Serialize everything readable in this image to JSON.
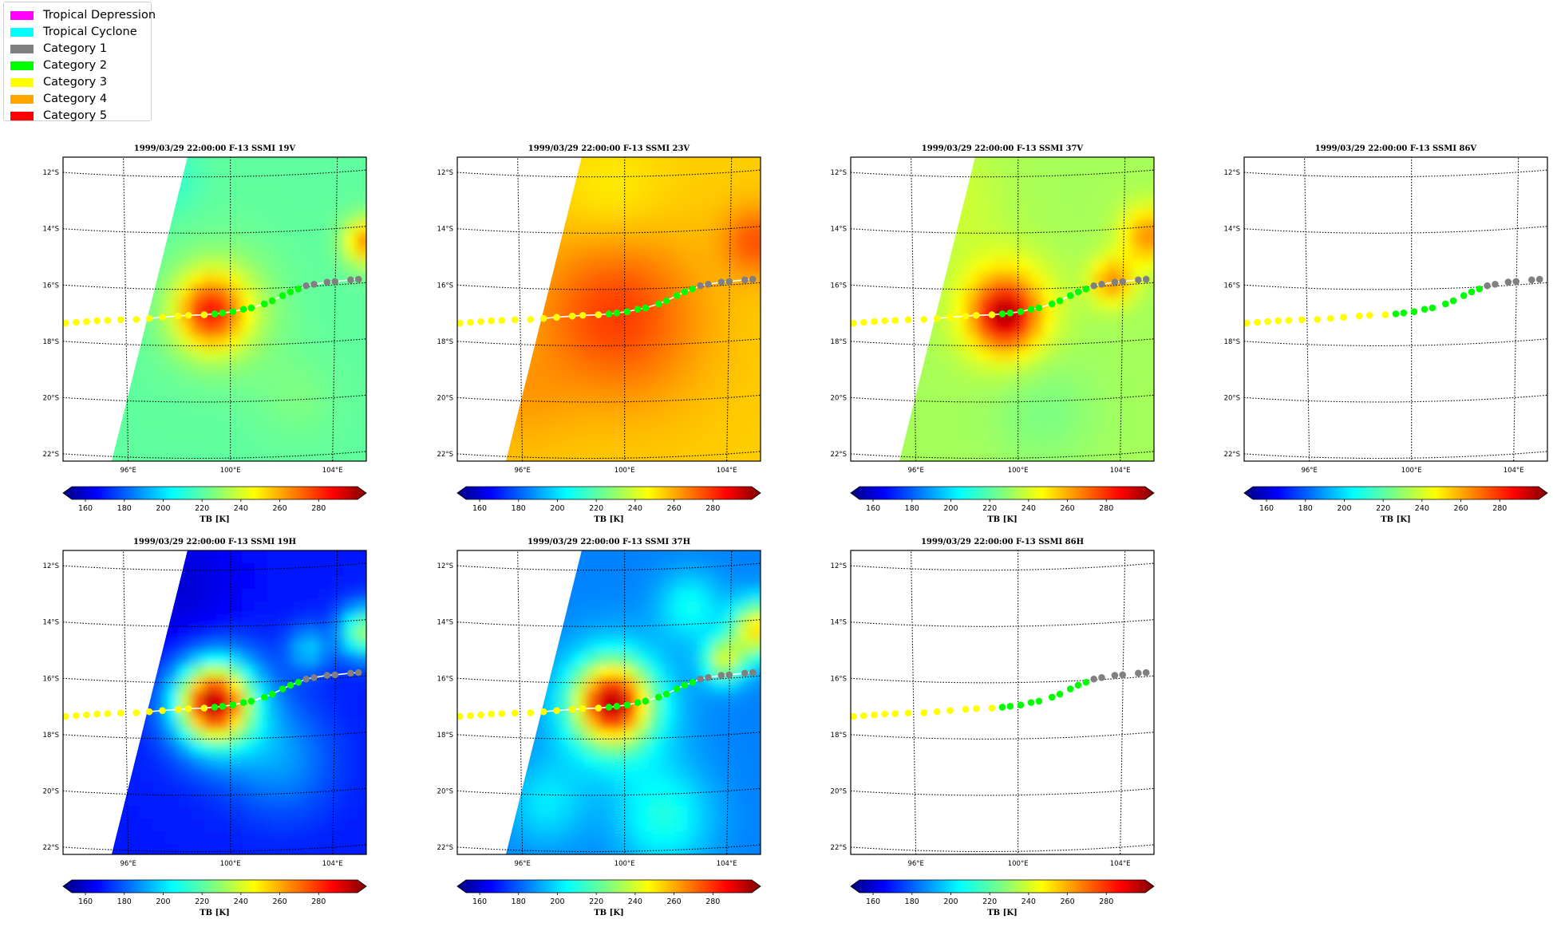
{
  "legend": {
    "items": [
      {
        "label": "Tropical Depression",
        "color": "#ff00ff"
      },
      {
        "label": "Tropical Cyclone",
        "color": "#00ffff"
      },
      {
        "label": "Category 1",
        "color": "#808080"
      },
      {
        "label": "Category 2",
        "color": "#00ff00"
      },
      {
        "label": "Category 3",
        "color": "#ffff00"
      },
      {
        "label": "Category 4",
        "color": "#ffa500"
      },
      {
        "label": "Category 5",
        "color": "#ff0000"
      }
    ]
  },
  "map": {
    "lon_ticks": [
      "96°E",
      "100°E",
      "104°E"
    ],
    "lat_ticks": [
      "12°S",
      "14°S",
      "16°S",
      "18°S",
      "20°S",
      "22°S"
    ],
    "lon_values": [
      96,
      100,
      104
    ],
    "lat_values": [
      -12,
      -14,
      -16,
      -18,
      -20,
      -22
    ],
    "lon_range": [
      93.6,
      105.2
    ],
    "lat_range": [
      -22.3,
      -11.5
    ]
  },
  "colorbar": {
    "ticks": [
      "160",
      "180",
      "200",
      "220",
      "240",
      "260",
      "280"
    ],
    "tick_values": [
      160,
      180,
      200,
      220,
      240,
      260,
      280
    ],
    "range": [
      153,
      300
    ],
    "label": "TB [K]",
    "colormap": "jet",
    "extend": "both"
  },
  "panels": [
    {
      "title": "1999/03/29 22:00:00  F-13 SSMI 19V",
      "field": "19V",
      "swath": true,
      "row": 0,
      "col": 0
    },
    {
      "title": "1999/03/29 22:00:00  F-13 SSMI 23V",
      "field": "23V",
      "swath": true,
      "row": 0,
      "col": 1
    },
    {
      "title": "1999/03/29 22:00:00  F-13 SSMI 37V",
      "field": "37V",
      "swath": true,
      "row": 0,
      "col": 2
    },
    {
      "title": "1999/03/29 22:00:00  F-13 SSMI 86V",
      "field": "86V",
      "swath": false,
      "row": 0,
      "col": 3
    },
    {
      "title": "1999/03/29 22:00:00  F-13 SSMI 19H",
      "field": "19H",
      "swath": true,
      "row": 1,
      "col": 0
    },
    {
      "title": "1999/03/29 22:00:00  F-13 SSMI 37H",
      "field": "37H",
      "swath": true,
      "row": 1,
      "col": 1
    },
    {
      "title": "1999/03/29 22:00:00  F-13 SSMI 86H",
      "field": "86H",
      "swath": false,
      "row": 1,
      "col": 2
    }
  ],
  "track": {
    "points": [
      {
        "lon": 93.7,
        "lat": -17.35,
        "cat": "Category 3"
      },
      {
        "lon": 94.1,
        "lat": -17.3,
        "cat": "Category 3"
      },
      {
        "lon": 94.5,
        "lat": -17.25,
        "cat": "Category 3"
      },
      {
        "lon": 94.9,
        "lat": -17.2,
        "cat": "Category 3"
      },
      {
        "lon": 95.3,
        "lat": -17.17,
        "cat": "Category 3"
      },
      {
        "lon": 95.8,
        "lat": -17.13,
        "cat": "Category 3"
      },
      {
        "lon": 96.4,
        "lat": -17.1,
        "cat": "Category 3"
      },
      {
        "lon": 96.9,
        "lat": -17.05,
        "cat": "Category 3"
      },
      {
        "lon": 97.4,
        "lat": -17.0,
        "cat": "Category 3"
      },
      {
        "lon": 98.0,
        "lat": -16.95,
        "cat": "Category 3"
      },
      {
        "lon": 98.4,
        "lat": -16.92,
        "cat": "Category 3"
      },
      {
        "lon": 99.0,
        "lat": -16.9,
        "cat": "Category 3"
      },
      {
        "lon": 99.4,
        "lat": -16.87,
        "cat": "Category 2"
      },
      {
        "lon": 99.7,
        "lat": -16.84,
        "cat": "Category 2"
      },
      {
        "lon": 100.1,
        "lat": -16.8,
        "cat": "Category 2"
      },
      {
        "lon": 100.5,
        "lat": -16.72,
        "cat": "Category 2"
      },
      {
        "lon": 100.8,
        "lat": -16.68,
        "cat": "Category 2"
      },
      {
        "lon": 101.3,
        "lat": -16.55,
        "cat": "Category 2"
      },
      {
        "lon": 101.6,
        "lat": -16.45,
        "cat": "Category 2"
      },
      {
        "lon": 102.0,
        "lat": -16.28,
        "cat": "Category 2"
      },
      {
        "lon": 102.3,
        "lat": -16.16,
        "cat": "Category 2"
      },
      {
        "lon": 102.6,
        "lat": -16.07,
        "cat": "Category 2"
      },
      {
        "lon": 102.9,
        "lat": -15.97,
        "cat": "Category 1"
      },
      {
        "lon": 103.2,
        "lat": -15.93,
        "cat": "Category 1"
      },
      {
        "lon": 103.7,
        "lat": -15.88,
        "cat": "Category 1"
      },
      {
        "lon": 104.0,
        "lat": -15.88,
        "cat": "Category 1"
      },
      {
        "lon": 104.6,
        "lat": -15.86,
        "cat": "Category 1"
      },
      {
        "lon": 104.9,
        "lat": -15.86,
        "cat": "Category 1"
      }
    ]
  }
}
